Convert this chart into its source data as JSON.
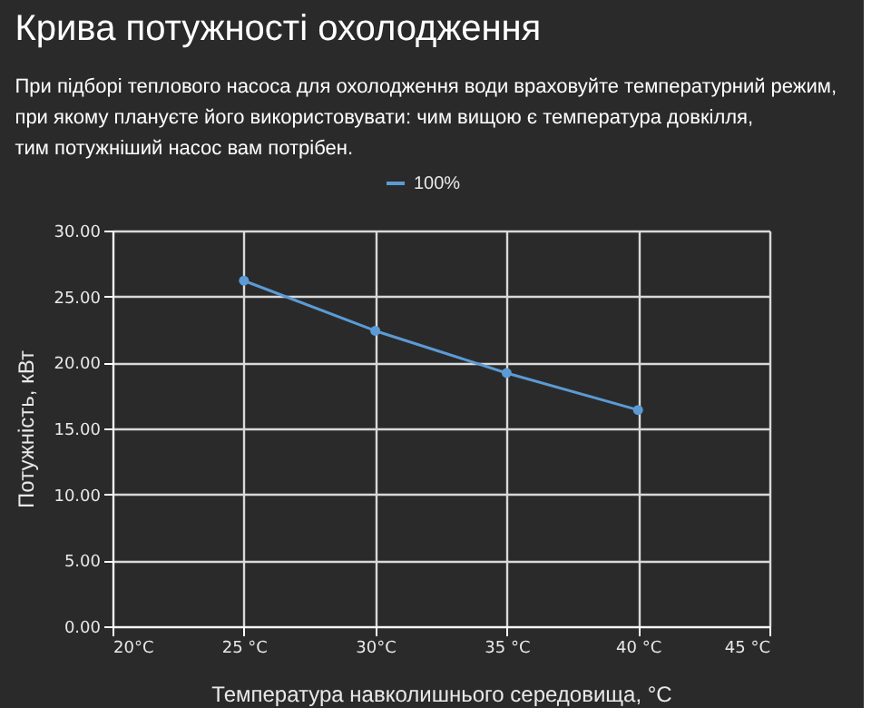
{
  "chart_data": {
    "type": "line",
    "title": "Крива потужності охолодження",
    "subtitle": "При підборі теплового насоса для охолодження води враховуйте температурний режим,\nпри якому плануєте його використовувати: чим вищою є температура довкілля,\nтим потужніший насос вам потрібен.",
    "xlabel": "Температура навколишнього середовища, °C",
    "ylabel": "Потужність, кВт",
    "x": [
      25,
      30,
      35,
      40
    ],
    "series": [
      {
        "name": "100%",
        "color": "#5b9bd5",
        "values": [
          26.2,
          22.4,
          19.2,
          16.4
        ]
      }
    ],
    "xlim": [
      20,
      45
    ],
    "xticks": [
      {
        "value": 20,
        "label": "20°C"
      },
      {
        "value": 25,
        "label": "25 °C"
      },
      {
        "value": 30,
        "label": "30°C"
      },
      {
        "value": 35,
        "label": "35 °C"
      },
      {
        "value": 40,
        "label": "40 °C"
      },
      {
        "value": 45,
        "label": "45 °C"
      }
    ],
    "ylim": [
      0,
      30
    ],
    "yticks": [
      {
        "value": 0,
        "label": "0.00"
      },
      {
        "value": 5,
        "label": "5.00"
      },
      {
        "value": 10,
        "label": "10.00"
      },
      {
        "value": 15,
        "label": "15.00"
      },
      {
        "value": 20,
        "label": "20.00"
      },
      {
        "value": 25,
        "label": "25.00"
      },
      {
        "value": 30,
        "label": "30.00"
      }
    ],
    "grid": true,
    "legend": "top",
    "marker": "circle",
    "line_style": "solid"
  }
}
